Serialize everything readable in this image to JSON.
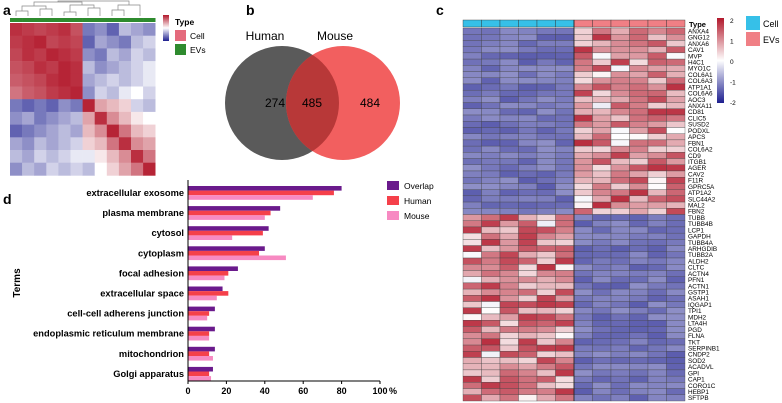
{
  "figure": {
    "panels": {
      "a": "a",
      "b": "b",
      "c": "c",
      "d": "d"
    }
  },
  "chart_data": [
    {
      "panel": "a",
      "type": "heatmap",
      "title": "",
      "legend": {
        "title": "Type",
        "entries": [
          {
            "name": "Cell",
            "color": "#e46a7c"
          },
          {
            "name": "EVs",
            "color": "#2e8b2e"
          }
        ]
      },
      "group_bar": [
        "EVs",
        "EVs",
        "EVs",
        "EVs",
        "EVs",
        "EVs",
        "EVs",
        "EVs",
        "EVs",
        "EVs",
        "EVs",
        "EVs"
      ],
      "colorscale": {
        "low": "#1d1f8f",
        "mid": "#ffffff",
        "high": "#b2182b",
        "range": [
          -1,
          1
        ]
      },
      "matrix": [
        [
          0.9,
          0.85,
          0.8,
          0.85,
          0.9,
          0.75,
          -0.6,
          -0.5,
          -0.7,
          -0.3,
          -0.4,
          -0.5
        ],
        [
          0.85,
          0.9,
          0.95,
          0.8,
          0.85,
          0.8,
          -0.7,
          -0.4,
          -0.5,
          -0.6,
          -0.3,
          -0.2
        ],
        [
          0.8,
          0.9,
          0.85,
          0.95,
          0.9,
          0.85,
          -0.5,
          -0.6,
          -0.3,
          -0.4,
          -0.2,
          -0.3
        ],
        [
          0.75,
          0.8,
          0.9,
          0.85,
          0.95,
          0.9,
          -0.3,
          -0.5,
          -0.4,
          -0.3,
          -0.2,
          -0.1
        ],
        [
          0.7,
          0.75,
          0.8,
          0.9,
          0.95,
          0.9,
          -0.4,
          -0.3,
          -0.2,
          -0.3,
          -0.2,
          -0.1
        ],
        [
          0.6,
          0.7,
          0.75,
          0.85,
          0.9,
          0.95,
          -0.5,
          -0.2,
          -0.3,
          -0.1,
          0.0,
          -0.2
        ],
        [
          -0.6,
          -0.7,
          -0.6,
          -0.7,
          -0.5,
          -0.6,
          0.95,
          0.4,
          0.3,
          0.2,
          -0.2,
          -0.3
        ],
        [
          -0.5,
          -0.4,
          -0.6,
          -0.5,
          -0.4,
          -0.3,
          0.4,
          0.9,
          0.5,
          0.3,
          0.1,
          0.0
        ],
        [
          -0.7,
          -0.6,
          -0.5,
          -0.4,
          -0.3,
          -0.4,
          0.3,
          0.5,
          0.95,
          0.6,
          0.3,
          0.2
        ],
        [
          -0.4,
          -0.5,
          -0.3,
          -0.4,
          -0.3,
          -0.2,
          0.2,
          0.3,
          0.6,
          0.9,
          0.5,
          0.4
        ],
        [
          -0.3,
          -0.4,
          -0.2,
          -0.3,
          -0.2,
          -0.1,
          -0.1,
          0.1,
          0.3,
          0.5,
          0.9,
          0.6
        ],
        [
          -0.5,
          -0.3,
          -0.4,
          -0.2,
          -0.3,
          -0.2,
          -0.3,
          0.0,
          0.2,
          0.4,
          0.6,
          0.95
        ]
      ]
    },
    {
      "panel": "b",
      "type": "venn",
      "sets": [
        {
          "name": "Human",
          "only": "274",
          "color": "#5a5a5a"
        },
        {
          "name": "Mouse",
          "only": "484",
          "color": "#f25f5f"
        }
      ],
      "overlap": "485",
      "overlap_color": "#b83838"
    },
    {
      "panel": "c",
      "type": "heatmap",
      "legend": {
        "title": "Type",
        "entries": [
          {
            "name": "Cell",
            "color": "#36c0e8"
          },
          {
            "name": "EVs",
            "color": "#f07f85"
          }
        ]
      },
      "colorbar": {
        "ticks": [
          "2",
          "1",
          "0",
          "-1",
          "-2"
        ],
        "range": [
          -2,
          2
        ]
      },
      "columns": [
        "Cell",
        "Cell",
        "Cell",
        "Cell",
        "Cell",
        "Cell",
        "EVs",
        "EVs",
        "EVs",
        "EVs",
        "EVs",
        "EVs"
      ],
      "genes": [
        "ANXA4",
        "GNG12",
        "ANXA6",
        "CAV1",
        "MVP",
        "H4C1",
        "MYO1C",
        "COL6A1",
        "COL6A3",
        "ATP1A1",
        "COL6A6",
        "AOC3",
        "ANXA11",
        "CD81",
        "CLIC5",
        "SUSD2",
        "PODXL",
        "APCS",
        "FBN1",
        "COL6A2",
        "CD9",
        "ITGB1",
        "AGER",
        "CAV2",
        "F11R",
        "GPRC5A",
        "ATP1A2",
        "SLC44A2",
        "MAL2",
        "FBN2",
        "TUBB",
        "TUBB4B",
        "LCP1",
        "GAPDH",
        "TUBB4A",
        "ARHGDIB",
        "TUBB2A",
        "ALDH2",
        "CLTC",
        "ACTN4",
        "PFN1",
        "ACTN1",
        "GSTP1",
        "ASAH1",
        "IQGAP1",
        "TPI1",
        "MDH2",
        "LTA4H",
        "PGD",
        "FLNA",
        "TKT",
        "SERPINB1",
        "CNDP2",
        "SOD2",
        "ACADVL",
        "GPI",
        "CAP1",
        "CORO1C",
        "HEBP1",
        "SFTPB"
      ]
    },
    {
      "panel": "d",
      "type": "bar",
      "orientation": "horizontal",
      "ylabel": "Terms",
      "xlabel": "%",
      "xlim": [
        0,
        100
      ],
      "xticks": [
        "0",
        "20",
        "40",
        "60",
        "80",
        "100"
      ],
      "categories": [
        "extracellular exosome",
        "plasma membrane",
        "cytosol",
        "cytoplasm",
        "focal adhesion",
        "extracellular space",
        "cell-cell adherens junction",
        "endoplasmic reticulum membrane",
        "mitochondrion",
        "Golgi apparatus"
      ],
      "series": [
        {
          "name": "Overlap",
          "color": "#6a1a8c",
          "values": [
            80,
            48,
            42,
            40,
            26,
            18,
            14,
            14,
            14,
            13
          ]
        },
        {
          "name": "Human",
          "color": "#f5404a",
          "values": [
            76,
            43,
            39,
            37,
            21,
            21,
            11,
            11,
            11,
            11
          ]
        },
        {
          "name": "Mouse",
          "color": "#f78ac2",
          "values": [
            65,
            40,
            23,
            51,
            19,
            15,
            10,
            11,
            13,
            12
          ]
        }
      ]
    }
  ]
}
